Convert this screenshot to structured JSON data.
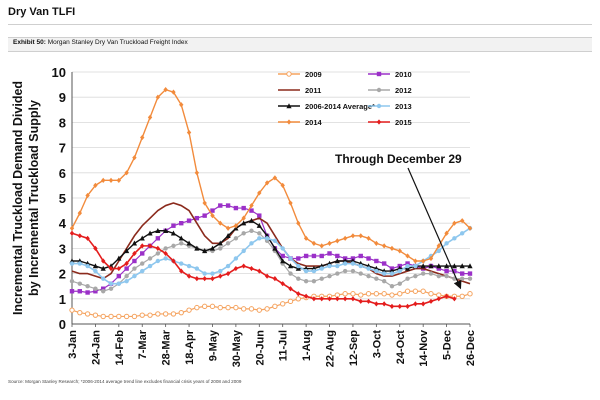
{
  "page_title": "Dry Van TLFI",
  "exhibit": {
    "label": "Exhibit 50:",
    "text": "Morgan Stanley Dry Van Truckload Freight Index"
  },
  "source_note": "Source: Morgan Stanley Research; *2006-2014 average trend line excludes financial crisis years of 2008 and 2009",
  "chart_data": {
    "type": "line",
    "title": "",
    "ylabel_lines": [
      "Incremental Truckload Demand Divided",
      "by Incremental Truckload Supply"
    ],
    "xlabel": "",
    "ylim": [
      0,
      10
    ],
    "yticks": [
      0,
      1,
      2,
      3,
      4,
      5,
      6,
      7,
      8,
      9,
      10
    ],
    "xticks": [
      "3-Jan",
      "24-Jan",
      "14-Feb",
      "7-Mar",
      "28-Mar",
      "18-Apr",
      "9-May",
      "30-May",
      "20-Jun",
      "11-Jul",
      "1-Aug",
      "22-Aug",
      "12-Sep",
      "3-Oct",
      "24-Oct",
      "14-Nov",
      "5-Dec",
      "26-Dec"
    ],
    "grid": true,
    "legend_position": "top-right",
    "annotation": "Through December 29",
    "series": [
      {
        "name": "2009",
        "color": "#f5a35f",
        "marker": "circle-open",
        "width": 1.2,
        "values": [
          0.55,
          0.45,
          0.4,
          0.35,
          0.3,
          0.3,
          0.3,
          0.3,
          0.3,
          0.35,
          0.35,
          0.4,
          0.4,
          0.4,
          0.45,
          0.55,
          0.65,
          0.7,
          0.7,
          0.65,
          0.65,
          0.65,
          0.6,
          0.6,
          0.55,
          0.6,
          0.7,
          0.8,
          0.9,
          1.0,
          1.05,
          1.1,
          1.1,
          1.1,
          1.15,
          1.2,
          1.2,
          1.15,
          1.2,
          1.2,
          1.2,
          1.15,
          1.2,
          1.3,
          1.3,
          1.3,
          1.2,
          1.15,
          1.1,
          1.1,
          1.1,
          1.2
        ]
      },
      {
        "name": "2010",
        "color": "#9b30c8",
        "marker": "square",
        "width": 1.2,
        "values": [
          1.3,
          1.3,
          1.25,
          1.3,
          1.4,
          1.6,
          1.9,
          2.2,
          2.5,
          2.8,
          3.1,
          3.4,
          3.7,
          3.9,
          4.0,
          4.1,
          4.2,
          4.3,
          4.5,
          4.7,
          4.7,
          4.6,
          4.6,
          4.5,
          4.3,
          3.5,
          3.0,
          2.7,
          2.6,
          2.6,
          2.7,
          2.7,
          2.7,
          2.8,
          2.7,
          2.6,
          2.6,
          2.7,
          2.6,
          2.5,
          2.4,
          2.2,
          2.3,
          2.4,
          2.3,
          2.2,
          2.3,
          2.2,
          2.1,
          2.1,
          2.0,
          2.0
        ]
      },
      {
        "name": "2011",
        "color": "#8b2a1c",
        "marker": "none",
        "width": 1.6,
        "values": [
          2.1,
          2.0,
          2.0,
          1.9,
          1.8,
          2.0,
          2.5,
          3.0,
          3.5,
          3.9,
          4.2,
          4.5,
          4.7,
          4.8,
          4.7,
          4.5,
          4.0,
          3.5,
          3.2,
          3.2,
          3.4,
          3.8,
          4.0,
          4.1,
          4.2,
          4.0,
          3.5,
          3.0,
          2.6,
          2.4,
          2.3,
          2.3,
          2.3,
          2.4,
          2.5,
          2.5,
          2.4,
          2.3,
          2.2,
          2.0,
          1.9,
          1.9,
          2.0,
          2.1,
          2.2,
          2.2,
          2.1,
          2.0,
          1.9,
          1.8,
          1.7,
          1.6
        ]
      },
      {
        "name": "2012",
        "color": "#a8a8a8",
        "marker": "circle",
        "width": 1.2,
        "values": [
          1.7,
          1.6,
          1.5,
          1.4,
          1.3,
          1.4,
          1.6,
          1.9,
          2.2,
          2.4,
          2.6,
          2.8,
          3.0,
          3.1,
          3.2,
          3.1,
          3.0,
          2.9,
          2.9,
          3.0,
          3.2,
          3.4,
          3.6,
          3.7,
          3.6,
          3.3,
          2.9,
          2.4,
          2.0,
          1.8,
          1.7,
          1.7,
          1.8,
          1.9,
          2.0,
          2.1,
          2.1,
          2.0,
          1.9,
          1.8,
          1.7,
          1.5,
          1.6,
          1.8,
          1.9,
          2.0,
          2.0,
          1.9,
          1.9,
          1.8,
          1.8,
          1.8
        ]
      },
      {
        "name": "2006-2014 Average*",
        "color": "#111111",
        "marker": "triangle",
        "width": 1.4,
        "values": [
          2.5,
          2.5,
          2.4,
          2.3,
          2.2,
          2.3,
          2.6,
          2.9,
          3.2,
          3.4,
          3.6,
          3.7,
          3.7,
          3.6,
          3.4,
          3.2,
          3.0,
          2.9,
          3.0,
          3.2,
          3.5,
          3.8,
          4.0,
          4.1,
          3.9,
          3.5,
          3.0,
          2.5,
          2.3,
          2.2,
          2.2,
          2.2,
          2.3,
          2.4,
          2.5,
          2.5,
          2.5,
          2.4,
          2.3,
          2.2,
          2.1,
          2.1,
          2.2,
          2.2,
          2.3,
          2.3,
          2.3,
          2.3,
          2.3,
          2.3,
          2.3,
          2.3
        ]
      },
      {
        "name": "2013",
        "color": "#8ec7ee",
        "marker": "circle",
        "width": 1.6,
        "values": [
          2.4,
          2.4,
          2.3,
          2.1,
          1.8,
          1.6,
          1.6,
          1.7,
          1.9,
          2.1,
          2.3,
          2.5,
          2.6,
          2.5,
          2.4,
          2.3,
          2.2,
          2.0,
          2.0,
          2.1,
          2.3,
          2.6,
          2.9,
          3.2,
          3.4,
          3.4,
          3.3,
          3.0,
          2.6,
          2.3,
          2.1,
          2.1,
          2.2,
          2.3,
          2.3,
          2.4,
          2.4,
          2.3,
          2.2,
          2.1,
          2.0,
          2.0,
          2.1,
          2.3,
          2.3,
          2.5,
          2.7,
          2.9,
          3.2,
          3.4,
          3.6,
          3.8
        ]
      },
      {
        "name": "2014",
        "color": "#f28b3c",
        "marker": "diamond",
        "width": 1.4,
        "values": [
          3.8,
          4.4,
          5.1,
          5.5,
          5.7,
          5.7,
          5.7,
          6.0,
          6.6,
          7.4,
          8.2,
          9.0,
          9.3,
          9.2,
          8.7,
          7.6,
          6.0,
          4.8,
          4.3,
          4.0,
          3.8,
          3.9,
          4.2,
          4.7,
          5.2,
          5.6,
          5.8,
          5.5,
          4.8,
          4.0,
          3.4,
          3.2,
          3.1,
          3.2,
          3.3,
          3.4,
          3.5,
          3.5,
          3.4,
          3.2,
          3.1,
          3.0,
          2.9,
          2.7,
          2.5,
          2.5,
          2.6,
          3.1,
          3.6,
          4.0,
          4.1,
          3.8
        ]
      },
      {
        "name": "2015",
        "color": "#e41d1d",
        "marker": "diamond",
        "width": 1.6,
        "values": [
          3.6,
          3.5,
          3.4,
          3.0,
          2.5,
          2.2,
          2.2,
          2.4,
          2.8,
          3.1,
          3.1,
          3.0,
          2.8,
          2.5,
          2.1,
          1.9,
          1.8,
          1.8,
          1.8,
          1.9,
          2.0,
          2.2,
          2.3,
          2.2,
          2.1,
          1.9,
          1.8,
          1.6,
          1.4,
          1.2,
          1.1,
          1.0,
          1.0,
          1.0,
          1.0,
          1.0,
          1.0,
          0.9,
          0.9,
          0.8,
          0.8,
          0.7,
          0.7,
          0.7,
          0.8,
          0.8,
          0.9,
          1.0,
          1.1,
          1.0
        ]
      }
    ]
  }
}
